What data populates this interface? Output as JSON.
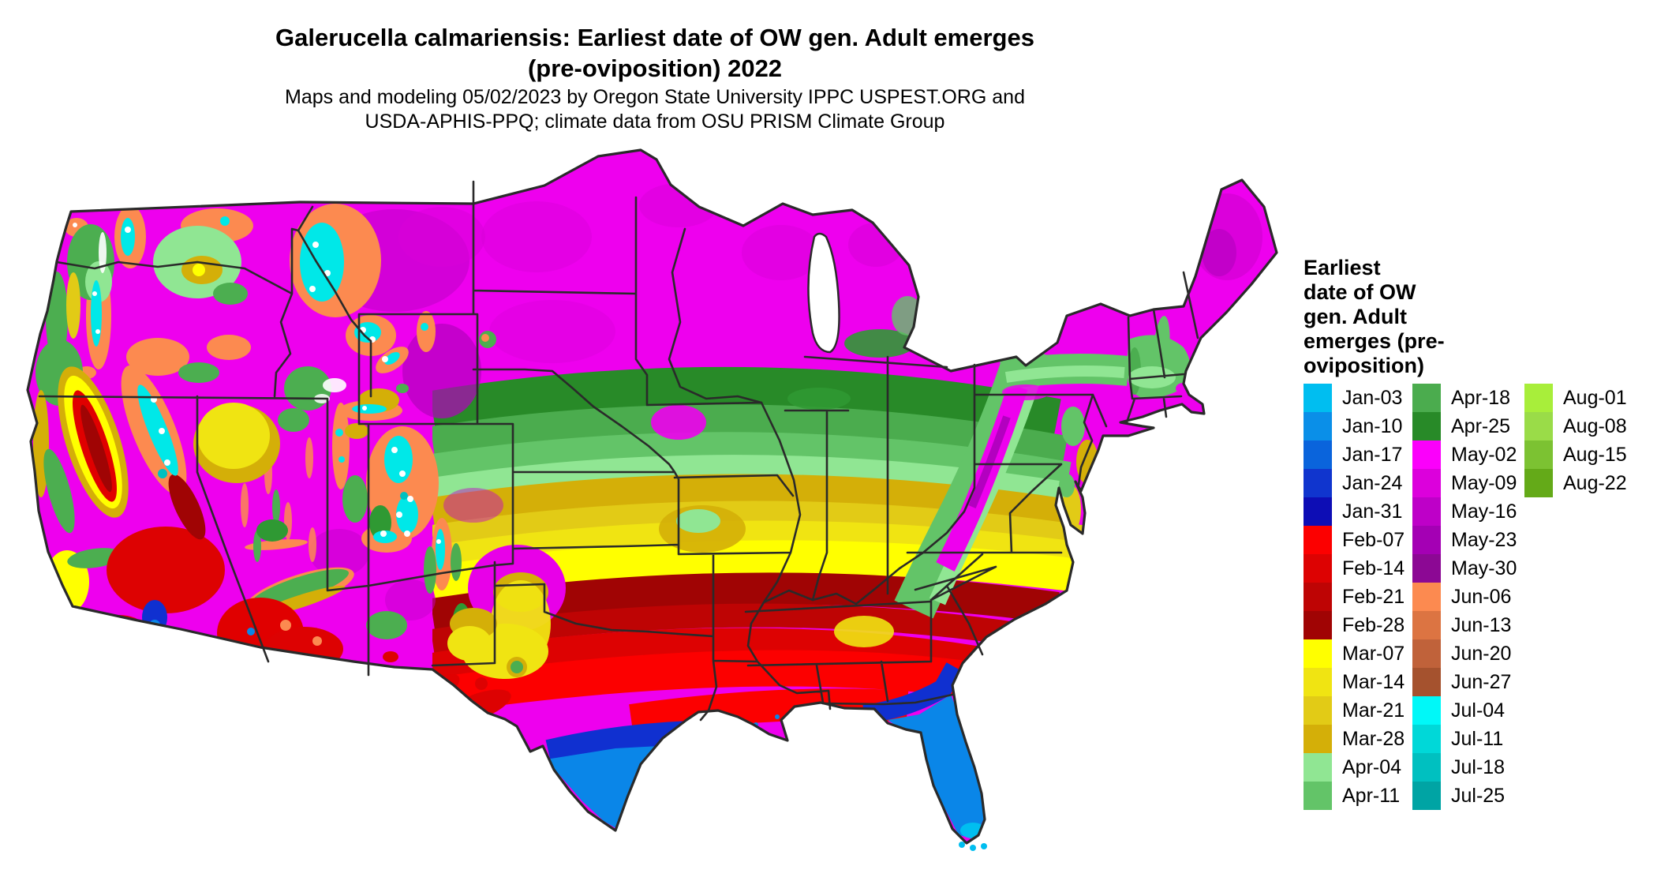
{
  "header": {
    "title_line1": "Galerucella calmariensis: Earliest date of OW gen. Adult emerges",
    "title_line2": "(pre-oviposition) 2022",
    "subtitle_line1": "Maps and modeling 05/02/2023 by Oregon State University IPPC USPEST.ORG and",
    "subtitle_line2": "USDA-APHIS-PPQ; climate data from OSU PRISM Climate Group"
  },
  "legend": {
    "title_lines": [
      "Earliest",
      "date of OW",
      "gen. Adult",
      "emerges (pre-",
      "oviposition)"
    ],
    "columns": [
      [
        {
          "label": "Jan-03",
          "color": "#00BEF0"
        },
        {
          "label": "Jan-10",
          "color": "#0A8FE8"
        },
        {
          "label": "Jan-17",
          "color": "#0A64DC"
        },
        {
          "label": "Jan-24",
          "color": "#1035CE"
        },
        {
          "label": "Jan-31",
          "color": "#0D0DB5"
        },
        {
          "label": "Feb-07",
          "color": "#FC0000"
        },
        {
          "label": "Feb-14",
          "color": "#DD0202"
        },
        {
          "label": "Feb-21",
          "color": "#BE0404"
        },
        {
          "label": "Feb-28",
          "color": "#A00404"
        },
        {
          "label": "Mar-07",
          "color": "#FFFF00"
        },
        {
          "label": "Mar-14",
          "color": "#F0E412"
        },
        {
          "label": "Mar-21",
          "color": "#E2CB16"
        },
        {
          "label": "Mar-28",
          "color": "#D4AF08"
        },
        {
          "label": "Apr-04",
          "color": "#90E693"
        },
        {
          "label": "Apr-11",
          "color": "#63C468"
        }
      ],
      [
        {
          "label": "Apr-18",
          "color": "#4BAC4E"
        },
        {
          "label": "Apr-25",
          "color": "#288A28"
        },
        {
          "label": "May-02",
          "color": "#FB00FB"
        },
        {
          "label": "May-09",
          "color": "#DC00DC"
        },
        {
          "label": "May-16",
          "color": "#BE00C8"
        },
        {
          "label": "May-23",
          "color": "#A400B4"
        },
        {
          "label": "May-30",
          "color": "#8C0894"
        },
        {
          "label": "Jun-06",
          "color": "#FC8A50"
        },
        {
          "label": "Jun-13",
          "color": "#DC7442"
        },
        {
          "label": "Jun-20",
          "color": "#C0623A"
        },
        {
          "label": "Jun-27",
          "color": "#A5522E"
        },
        {
          "label": "Jul-04",
          "color": "#00F8F8"
        },
        {
          "label": "Jul-11",
          "color": "#00D8D8"
        },
        {
          "label": "Jul-18",
          "color": "#00C0C0"
        },
        {
          "label": "Jul-25",
          "color": "#00A4A4"
        }
      ],
      [
        {
          "label": "Aug-01",
          "color": "#A8EE3A"
        },
        {
          "label": "Aug-08",
          "color": "#9ADC48"
        },
        {
          "label": "Aug-15",
          "color": "#7CC232"
        },
        {
          "label": "Aug-22",
          "color": "#64AA18"
        }
      ]
    ]
  }
}
